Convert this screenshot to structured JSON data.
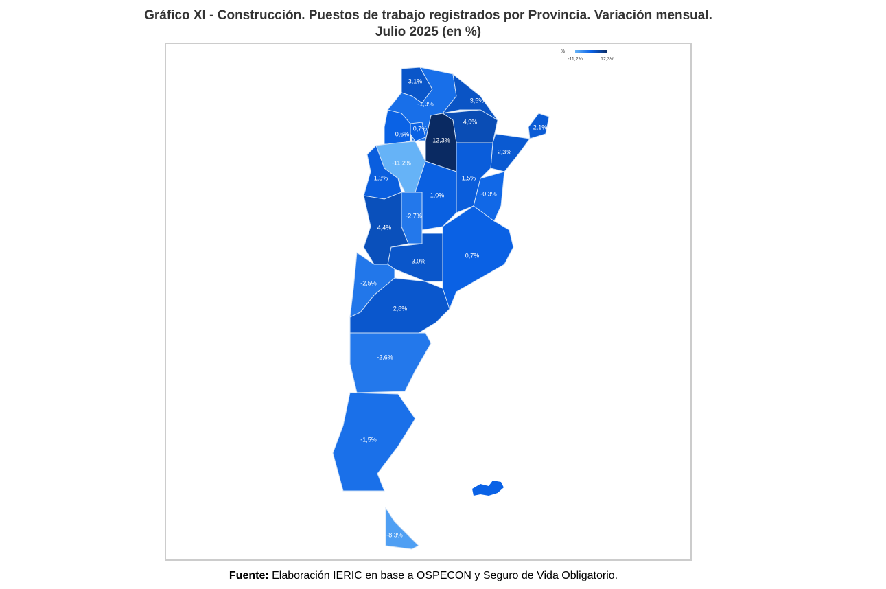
{
  "chart_data": {
    "type": "choropleth",
    "title": "Gráfico XI - Construcción. Puestos de trabajo registrados por Provincia. Variación mensual.",
    "subtitle": "Julio 2025 (en %)",
    "values": [
      3.1,
      -1.3,
      3.5,
      4.9,
      12.3,
      2.1,
      0.7,
      0.6,
      -11.2,
      2.3,
      1.3,
      1.0,
      1.5,
      -0.3,
      -2.7,
      4.4,
      0.7,
      3.0,
      -2.5,
      2.8,
      -2.6,
      -1.5,
      -8.3
    ],
    "value_labels": [
      "3,1%",
      "-1,3%",
      "3,5%",
      "4,9%",
      "12,3%",
      "2,1%",
      "0,7%",
      "0,6%",
      "-11,2%",
      "2,3%",
      "1,3%",
      "1,0%",
      "1,5%",
      "-0,3%",
      "-2,7%",
      "4,4%",
      "0,7%",
      "3,0%",
      "-2,5%",
      "2,8%",
      "-2,6%",
      "-1,5%",
      "-8,3%"
    ],
    "colors": [
      "#66b3f7",
      "#0a62e6",
      "#0a2a62"
    ],
    "legend_title": "%",
    "clim": [
      -11.2,
      12.3
    ],
    "cticks": [
      {
        "value": -11.2,
        "label": "-11,2%"
      },
      {
        "value": 12.3,
        "label": "12,3%"
      }
    ],
    "source_label": "Fuente:",
    "source": "Elaboración IERIC en base a OSPECON y Seguro de Vida Obligatorio."
  }
}
